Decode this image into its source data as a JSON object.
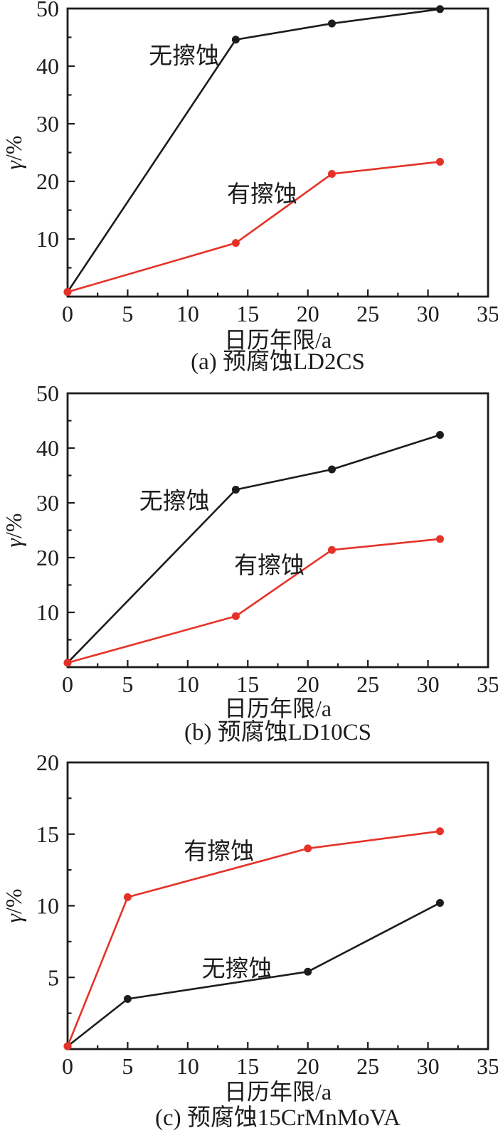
{
  "figure_colors": {
    "background": "#ffffff",
    "axis": "#1c1c1c",
    "black_series": "#1c1c1c",
    "red_series": "#e53228"
  },
  "chart_data": [
    {
      "type": "line",
      "caption": "(a) 预腐蚀LD2CS",
      "xlabel": "日历年限/a",
      "ylabel": "γ/%",
      "xlim": [
        0,
        35
      ],
      "ylim": [
        0,
        50
      ],
      "xtick_step": 5,
      "ytick_step": 10,
      "grid": false,
      "legend": "inline-annotations",
      "series": [
        {
          "key": "no-erosion",
          "label": "无擦蚀",
          "color": "#1c1c1c",
          "x": [
            0,
            14,
            22,
            31
          ],
          "y": [
            0.8,
            44.6,
            47.4,
            49.9
          ]
        },
        {
          "key": "erosion",
          "label": "有擦蚀",
          "color": "#e53228",
          "x": [
            0,
            14,
            22,
            31
          ],
          "y": [
            0.8,
            9.3,
            21.3,
            23.4
          ]
        }
      ],
      "annotations": [
        {
          "text": "无擦蚀",
          "x": 9.7,
          "y": 41.8
        },
        {
          "text": "有擦蚀",
          "x": 16.2,
          "y": 17.8
        }
      ]
    },
    {
      "type": "line",
      "caption": "(b) 预腐蚀LD10CS",
      "xlabel": "日历年限/a",
      "ylabel": "γ/%",
      "xlim": [
        0,
        35
      ],
      "ylim": [
        0,
        50
      ],
      "xtick_step": 5,
      "ytick_step": 10,
      "grid": false,
      "legend": "inline-annotations",
      "series": [
        {
          "key": "no-erosion",
          "label": "无擦蚀",
          "color": "#1c1c1c",
          "x": [
            0,
            14,
            22,
            31
          ],
          "y": [
            0.8,
            32.4,
            36.1,
            42.4
          ]
        },
        {
          "key": "erosion",
          "label": "有擦蚀",
          "color": "#e53228",
          "x": [
            0,
            14,
            22,
            31
          ],
          "y": [
            0.8,
            9.3,
            21.4,
            23.4
          ]
        }
      ],
      "annotations": [
        {
          "text": "无擦蚀",
          "x": 8.9,
          "y": 30.3
        },
        {
          "text": "有擦蚀",
          "x": 16.8,
          "y": 18.6
        }
      ]
    },
    {
      "type": "line",
      "caption": "(c) 预腐蚀15CrMnMoVA",
      "xlabel": "日历年限/a",
      "ylabel": "γ/%",
      "xlim": [
        0,
        35
      ],
      "ylim": [
        0,
        20
      ],
      "xtick_step": 5,
      "ytick_step": 5,
      "grid": false,
      "legend": "inline-annotations",
      "series": [
        {
          "key": "no-erosion",
          "label": "无擦蚀",
          "color": "#1c1c1c",
          "x": [
            0,
            5,
            20,
            31
          ],
          "y": [
            0.2,
            3.5,
            5.4,
            10.2
          ]
        },
        {
          "key": "erosion",
          "label": "有擦蚀",
          "color": "#e53228",
          "x": [
            0,
            5,
            20,
            31
          ],
          "y": [
            0.2,
            10.6,
            14.0,
            15.2
          ]
        }
      ],
      "annotations": [
        {
          "text": "有擦蚀",
          "x": 12.6,
          "y": 13.8
        },
        {
          "text": "无擦蚀",
          "x": 14.1,
          "y": 5.6
        }
      ]
    }
  ]
}
